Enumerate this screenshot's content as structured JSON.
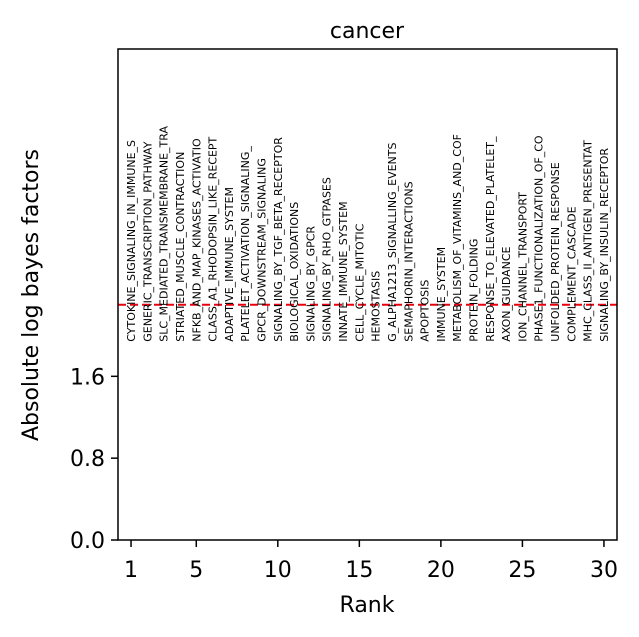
{
  "chart_data": {
    "type": "scatter",
    "title": "cancer",
    "xlabel": "Rank",
    "ylabel": "Absolute log bayes factors",
    "xlim": [
      0.2,
      30.8
    ],
    "ylim": [
      0.0,
      4.8
    ],
    "xticks": [
      1,
      5,
      10,
      15,
      20,
      25,
      30
    ],
    "xtick_labels": [
      "1",
      "5",
      "10",
      "15",
      "20",
      "25",
      "30"
    ],
    "yticks": [
      0.0,
      0.8,
      1.6
    ],
    "ytick_labels": [
      "0.0",
      "0.8",
      "1.6"
    ],
    "threshold": {
      "value": 2.3,
      "color": "#e8000b",
      "style": "dashed"
    },
    "points": [
      {
        "rank": 1,
        "label": "CYTOKINE_SIGNALING_IN_IMMUNE_S"
      },
      {
        "rank": 2,
        "label": "GENERIC_TRANSCRIPTION_PATHWAY"
      },
      {
        "rank": 3,
        "label": "SLC_MEDIATED_TRANSMEMBRANE_TRA"
      },
      {
        "rank": 4,
        "label": "STRIATED_MUSCLE_CONTRACTION"
      },
      {
        "rank": 5,
        "label": "NFKB_AND_MAP_KINASES_ACTIVATIO"
      },
      {
        "rank": 6,
        "label": "CLASS_A1_RHODOPSIN_LIKE_RECEPT"
      },
      {
        "rank": 7,
        "label": "ADAPTIVE_IMMUNE_SYSTEM"
      },
      {
        "rank": 8,
        "label": "PLATELET_ACTIVATION_SIGNALING_"
      },
      {
        "rank": 9,
        "label": "GPCR_DOWNSTREAM_SIGNALING"
      },
      {
        "rank": 10,
        "label": "SIGNALING_BY_TGF_BETA_RECEPTOR"
      },
      {
        "rank": 11,
        "label": "BIOLOGICAL_OXIDATIONS"
      },
      {
        "rank": 12,
        "label": "SIGNALING_BY_GPCR"
      },
      {
        "rank": 13,
        "label": "SIGNALING_BY_RHO_GTPASES"
      },
      {
        "rank": 14,
        "label": "INNATE_IMMUNE_SYSTEM"
      },
      {
        "rank": 15,
        "label": "CELL_CYCLE_MITOTIC"
      },
      {
        "rank": 16,
        "label": "HEMOSTASIS"
      },
      {
        "rank": 17,
        "label": "G_ALPHA1213_SIGNALLING_EVENTS"
      },
      {
        "rank": 18,
        "label": "SEMAPHORIN_INTERACTIONS"
      },
      {
        "rank": 19,
        "label": "APOPTOSIS"
      },
      {
        "rank": 20,
        "label": "IMMUNE_SYSTEM"
      },
      {
        "rank": 21,
        "label": "METABOLISM_OF_VITAMINS_AND_COF"
      },
      {
        "rank": 22,
        "label": "PROTEIN_FOLDING"
      },
      {
        "rank": 23,
        "label": "RESPONSE_TO_ELEVATED_PLATELET_"
      },
      {
        "rank": 24,
        "label": "AXON_GUIDANCE"
      },
      {
        "rank": 25,
        "label": "ION_CHANNEL_TRANSPORT"
      },
      {
        "rank": 26,
        "label": "PHASE1_FUNCTIONALIZATION_OF_CO"
      },
      {
        "rank": 27,
        "label": "UNFOLDED_PROTEIN_RESPONSE"
      },
      {
        "rank": 28,
        "label": "COMPLEMENT_CASCADE"
      },
      {
        "rank": 29,
        "label": "MHC_CLASS_II_ANTIGEN_PRESENTAT"
      },
      {
        "rank": 30,
        "label": "SIGNALING_BY_INSULIN_RECEPTOR"
      }
    ]
  }
}
